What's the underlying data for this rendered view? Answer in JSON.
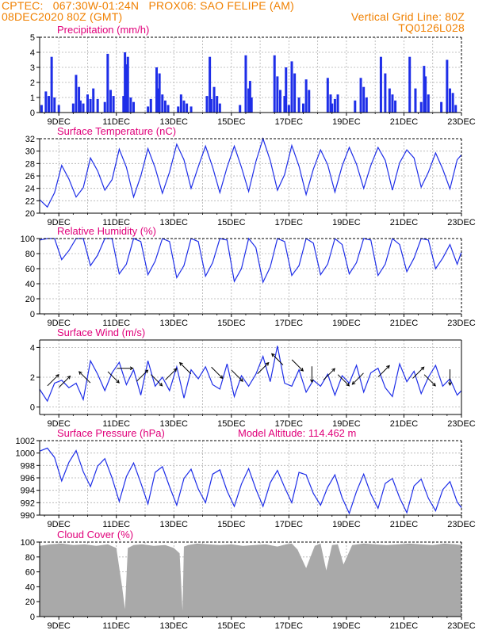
{
  "header": {
    "line1_left": "CPTEC:   067:30W-01:24N   PROX06: SAO FELIPE (AM)",
    "line2_left": "08DEC2020 80Z (GMT)",
    "line2_right": "Vertical Grid Line: 80Z",
    "line3_right": "TQ0126L028"
  },
  "colors": {
    "header": "#f08000",
    "panel_title": "#e0007a",
    "series": "#1e2ee8",
    "bars": "#1e2ee8",
    "cloud": "#a9a9a9",
    "grid": "#b0b0b0",
    "arrows": "#000000"
  },
  "x_axis": {
    "tick_labels": [
      "9DEC",
      "11DEC",
      "13DEC",
      "15DEC",
      "17DEC",
      "19DEC",
      "21DEC",
      "23DEC"
    ],
    "tick_days": [
      9,
      11,
      13,
      15,
      17,
      19,
      21,
      23
    ],
    "range_days": [
      8.333,
      23.0
    ]
  },
  "chart_data": [
    {
      "type": "bar",
      "title": "Precipitation (mm/h)",
      "ylim": [
        0,
        5
      ],
      "yticks": [
        0,
        1,
        2,
        3,
        4,
        5
      ],
      "x_days": [
        8.4,
        8.55,
        8.65,
        8.75,
        8.85,
        9.0,
        9.5,
        9.6,
        9.7,
        9.75,
        9.85,
        10.0,
        10.1,
        10.2,
        10.35,
        10.6,
        10.7,
        10.8,
        10.9,
        11.25,
        11.3,
        11.35,
        11.4,
        11.5,
        11.6,
        12.1,
        12.2,
        12.4,
        12.45,
        12.5,
        12.6,
        12.7,
        12.8,
        13.15,
        13.25,
        13.35,
        13.45,
        13.6,
        14.15,
        14.25,
        14.3,
        14.4,
        14.5,
        14.6,
        15.3,
        15.5,
        15.6,
        15.65,
        15.7,
        16.5,
        16.6,
        16.7,
        16.85,
        16.9,
        17.0,
        17.1,
        17.2,
        17.35,
        17.5,
        17.6,
        17.7,
        18.35,
        18.45,
        18.5,
        18.6,
        18.7,
        19.3,
        19.5,
        19.6,
        19.7,
        20.2,
        20.35,
        20.5,
        20.6,
        20.7,
        21.2,
        21.4,
        21.6,
        21.7,
        21.75,
        21.85,
        22.3,
        22.5,
        22.6,
        22.7,
        22.8
      ],
      "values": [
        0.5,
        1.4,
        1.1,
        3.7,
        1.0,
        0.5,
        0.6,
        2.5,
        1.7,
        0.8,
        0.6,
        1.2,
        0.9,
        1.6,
        0.9,
        0.7,
        3.9,
        1.5,
        1.1,
        1.1,
        4.0,
        3.2,
        3.7,
        1.0,
        0.7,
        0.4,
        0.9,
        3.0,
        1.6,
        2.6,
        1.2,
        0.8,
        0.5,
        0.4,
        1.2,
        0.8,
        0.6,
        0.4,
        1.1,
        3.7,
        0.9,
        1.7,
        1.1,
        0.6,
        0.5,
        3.8,
        1.6,
        2.1,
        1.0,
        3.8,
        2.4,
        1.5,
        1.1,
        3.0,
        0.5,
        3.4,
        2.6,
        1.0,
        0.6,
        2.2,
        1.5,
        2.3,
        1.2,
        0.6,
        0.9,
        1.2,
        0.8,
        2.3,
        1.7,
        1.0,
        3.7,
        2.6,
        1.6,
        1.2,
        0.8,
        3.7,
        1.6,
        0.7,
        3.1,
        2.4,
        1.2,
        0.7,
        3.5,
        1.6,
        1.3,
        0.5
      ]
    },
    {
      "type": "line",
      "title": "Surface Temperature (nC)",
      "ylim": [
        20,
        32
      ],
      "yticks": [
        20,
        22,
        24,
        26,
        28,
        30,
        32
      ],
      "x_days": [
        8.33,
        8.6,
        8.85,
        9.1,
        9.35,
        9.6,
        9.85,
        10.1,
        10.35,
        10.6,
        10.85,
        11.1,
        11.35,
        11.6,
        11.85,
        12.1,
        12.35,
        12.6,
        12.85,
        13.1,
        13.35,
        13.6,
        13.85,
        14.1,
        14.35,
        14.6,
        14.85,
        15.1,
        15.35,
        15.6,
        15.85,
        16.1,
        16.35,
        16.6,
        16.85,
        17.1,
        17.35,
        17.6,
        17.85,
        18.1,
        18.35,
        18.6,
        18.85,
        19.1,
        19.35,
        19.6,
        19.85,
        20.1,
        20.35,
        20.6,
        20.85,
        21.1,
        21.35,
        21.6,
        21.85,
        22.1,
        22.35,
        22.6,
        22.85,
        23.0
      ],
      "values": [
        22.2,
        21.0,
        23.3,
        27.7,
        25.5,
        22.6,
        24.1,
        28.9,
        26.8,
        23.7,
        25.4,
        30.3,
        27.4,
        22.6,
        26.0,
        30.4,
        27.3,
        23.2,
        26.6,
        31.1,
        28.6,
        24.0,
        27.5,
        30.8,
        27.4,
        23.3,
        27.4,
        30.8,
        27.4,
        23.5,
        28.3,
        32.0,
        28.5,
        23.7,
        26.2,
        30.9,
        27.6,
        23.0,
        27.1,
        30.2,
        27.8,
        23.4,
        27.6,
        30.6,
        27.9,
        24.0,
        27.7,
        30.6,
        28.5,
        23.7,
        28.1,
        30.2,
        28.9,
        24.2,
        26.6,
        29.7,
        27.1,
        23.9,
        28.6,
        29.4
      ]
    },
    {
      "type": "line",
      "title": "Relative Humidity (%)",
      "ylim": [
        0,
        100
      ],
      "yticks": [
        0,
        20,
        40,
        60,
        80,
        100
      ],
      "x_days": [
        8.33,
        8.6,
        8.85,
        9.1,
        9.35,
        9.6,
        9.85,
        10.1,
        10.35,
        10.6,
        10.85,
        11.1,
        11.35,
        11.6,
        11.85,
        12.1,
        12.35,
        12.6,
        12.85,
        13.1,
        13.35,
        13.6,
        13.85,
        14.1,
        14.35,
        14.6,
        14.85,
        15.1,
        15.35,
        15.6,
        15.85,
        16.1,
        16.35,
        16.6,
        16.85,
        17.1,
        17.35,
        17.6,
        17.85,
        18.1,
        18.35,
        18.6,
        18.85,
        19.1,
        19.35,
        19.6,
        19.85,
        20.1,
        20.35,
        20.6,
        20.85,
        21.1,
        21.35,
        21.6,
        21.85,
        22.1,
        22.35,
        22.6,
        22.85,
        23.0
      ],
      "values": [
        98,
        100,
        100,
        72,
        84,
        100,
        100,
        64,
        78,
        100,
        100,
        53,
        66,
        100,
        96,
        52,
        70,
        100,
        96,
        48,
        64,
        100,
        96,
        50,
        68,
        100,
        98,
        43,
        60,
        100,
        88,
        42,
        62,
        100,
        96,
        51,
        64,
        100,
        94,
        52,
        66,
        100,
        92,
        53,
        68,
        100,
        98,
        51,
        66,
        100,
        92,
        56,
        74,
        100,
        98,
        60,
        74,
        92,
        66,
        82
      ]
    },
    {
      "type": "line",
      "title": "Surface Wind (m/s)",
      "ylim": [
        -0.5,
        4.5
      ],
      "yticks": [
        0,
        2,
        4
      ],
      "x_days": [
        8.33,
        8.6,
        8.85,
        9.1,
        9.35,
        9.6,
        9.85,
        10.1,
        10.35,
        10.6,
        10.85,
        11.1,
        11.35,
        11.6,
        11.85,
        12.1,
        12.35,
        12.6,
        12.85,
        13.1,
        13.35,
        13.6,
        13.85,
        14.1,
        14.35,
        14.6,
        14.85,
        15.1,
        15.35,
        15.6,
        15.85,
        16.1,
        16.35,
        16.6,
        16.85,
        17.1,
        17.35,
        17.6,
        17.85,
        18.1,
        18.35,
        18.6,
        18.85,
        19.1,
        19.35,
        19.6,
        19.85,
        20.1,
        20.35,
        20.6,
        20.85,
        21.1,
        21.35,
        21.6,
        21.85,
        22.1,
        22.35,
        22.6,
        22.85,
        23.0
      ],
      "values": [
        1.2,
        0.4,
        1.6,
        1.8,
        1.3,
        1.6,
        0.5,
        3.1,
        2.2,
        1.1,
        2.3,
        3.0,
        1.5,
        2.5,
        0.8,
        3.1,
        1.4,
        2.0,
        1.1,
        2.7,
        0.6,
        2.5,
        1.9,
        2.7,
        1.5,
        1.2,
        2.9,
        0.7,
        2.1,
        1.4,
        2.2,
        3.4,
        1.7,
        4.1,
        1.6,
        1.4,
        2.5,
        1.0,
        1.8,
        1.4,
        2.2,
        0.8,
        2.1,
        1.6,
        2.8,
        1.0,
        2.3,
        2.6,
        1.3,
        0.7,
        2.9,
        1.7,
        2.4,
        0.9,
        2.0,
        2.8,
        1.4,
        1.9,
        0.8,
        1.1
      ],
      "arrows": [
        {
          "day": 8.8,
          "speed": 1.8,
          "dir": "NE"
        },
        {
          "day": 9.2,
          "speed": 1.7,
          "dir": "NE"
        },
        {
          "day": 9.9,
          "speed": 2.0,
          "dir": "NW"
        },
        {
          "day": 10.9,
          "speed": 2.0,
          "dir": "SE"
        },
        {
          "day": 11.3,
          "speed": 2.6,
          "dir": "E"
        },
        {
          "day": 11.9,
          "speed": 2.1,
          "dir": "NE"
        },
        {
          "day": 12.4,
          "speed": 1.8,
          "dir": "SE"
        },
        {
          "day": 12.9,
          "speed": 2.2,
          "dir": "NE"
        },
        {
          "day": 13.4,
          "speed": 2.6,
          "dir": "NW"
        },
        {
          "day": 14.5,
          "speed": 2.3,
          "dir": "SE"
        },
        {
          "day": 15.2,
          "speed": 2.1,
          "dir": "SE"
        },
        {
          "day": 16.1,
          "speed": 2.6,
          "dir": "NE"
        },
        {
          "day": 16.6,
          "speed": 3.2,
          "dir": "NW"
        },
        {
          "day": 17.3,
          "speed": 2.8,
          "dir": "SE"
        },
        {
          "day": 17.8,
          "speed": 2.2,
          "dir": "S"
        },
        {
          "day": 18.4,
          "speed": 2.2,
          "dir": "NE"
        },
        {
          "day": 18.9,
          "speed": 1.8,
          "dir": "SE"
        },
        {
          "day": 19.4,
          "speed": 1.9,
          "dir": "SW"
        },
        {
          "day": 20.3,
          "speed": 2.4,
          "dir": "NE"
        },
        {
          "day": 21.5,
          "speed": 2.3,
          "dir": "NE"
        },
        {
          "day": 21.9,
          "speed": 1.8,
          "dir": "SE"
        },
        {
          "day": 22.6,
          "speed": 2.0,
          "dir": "S"
        }
      ]
    },
    {
      "type": "line",
      "title": "Surface Pressure (hPa)",
      "annotation": "Model Altitude: 114.462 m",
      "ylim": [
        990,
        1002
      ],
      "yticks": [
        990,
        992,
        994,
        996,
        998,
        1000,
        1002
      ],
      "x_days": [
        8.33,
        8.6,
        8.85,
        9.1,
        9.35,
        9.6,
        9.85,
        10.1,
        10.35,
        10.6,
        10.85,
        11.1,
        11.35,
        11.6,
        11.85,
        12.1,
        12.35,
        12.6,
        12.85,
        13.1,
        13.35,
        13.6,
        13.85,
        14.1,
        14.35,
        14.6,
        14.85,
        15.1,
        15.35,
        15.6,
        15.85,
        16.1,
        16.35,
        16.6,
        16.85,
        17.1,
        17.35,
        17.6,
        17.85,
        18.1,
        18.35,
        18.6,
        18.85,
        19.1,
        19.35,
        19.6,
        19.85,
        20.1,
        20.35,
        20.6,
        20.85,
        21.1,
        21.35,
        21.6,
        21.85,
        22.1,
        22.35,
        22.6,
        22.85,
        23.0
      ],
      "values": [
        1000.3,
        1000.8,
        999.3,
        995.5,
        998.5,
        1000.4,
        997.0,
        994.6,
        997.9,
        999.1,
        996.0,
        992.2,
        996.2,
        998.4,
        995.2,
        991.8,
        996.9,
        997.8,
        994.6,
        991.6,
        995.9,
        997.4,
        994.2,
        992.0,
        996.6,
        997.3,
        993.9,
        991.4,
        995.0,
        997.5,
        994.2,
        991.4,
        995.2,
        997.2,
        994.5,
        992.0,
        996.9,
        996.5,
        993.5,
        991.6,
        994.5,
        996.5,
        992.8,
        990.3,
        993.8,
        996.6,
        993.4,
        991.1,
        995.1,
        995.9,
        992.8,
        990.4,
        994.7,
        995.8,
        992.7,
        990.7,
        994.1,
        995.4,
        992.1,
        991.2
      ]
    },
    {
      "type": "area",
      "title": "Cloud Cover (%)",
      "ylim": [
        0,
        100
      ],
      "yticks": [
        0,
        20,
        40,
        60,
        80,
        100
      ],
      "x_days": [
        8.33,
        8.7,
        9.1,
        9.5,
        9.9,
        10.3,
        10.7,
        11.0,
        11.2,
        11.3,
        11.4,
        11.6,
        11.9,
        12.3,
        12.7,
        13.0,
        13.2,
        13.3,
        13.35,
        13.5,
        13.8,
        14.2,
        14.6,
        15.0,
        15.4,
        15.8,
        16.2,
        16.6,
        16.9,
        17.1,
        17.3,
        17.6,
        17.9,
        18.1,
        18.3,
        18.5,
        18.7,
        18.9,
        19.2,
        19.6,
        20.0,
        20.4,
        20.8,
        21.2,
        21.6,
        22.0,
        22.4,
        22.8,
        23.0
      ],
      "values": [
        95,
        97,
        98,
        96,
        97,
        95,
        97,
        92,
        40,
        10,
        92,
        96,
        97,
        95,
        96,
        92,
        85,
        8,
        94,
        96,
        98,
        97,
        96,
        97,
        95,
        96,
        97,
        94,
        97,
        98,
        90,
        65,
        95,
        98,
        62,
        96,
        97,
        70,
        96,
        98,
        97,
        96,
        97,
        98,
        97,
        96,
        98,
        97,
        96
      ]
    }
  ]
}
